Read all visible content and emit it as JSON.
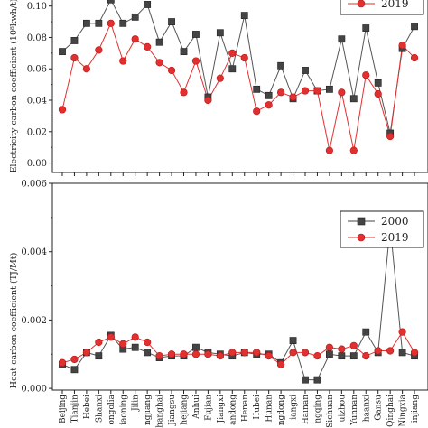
{
  "chart_data": [
    {
      "type": "line",
      "ylabel": "Electricity carbon coefficient (10⁸kwh/t)",
      "ylim": [
        -0.006,
        0.105
      ],
      "yticks": [
        "0.00",
        "0.02",
        "0.04",
        "0.06",
        "0.08",
        "0.10"
      ],
      "ytick_values": [
        0,
        0.02,
        0.04,
        0.06,
        0.08,
        0.1
      ],
      "categories": [
        "Beijing",
        "Tianjin",
        "Hebei",
        "Shanxi",
        "Inner Mongolia",
        "Liaoning",
        "Jilin",
        "Heilongjiang",
        "Shanghai",
        "Jiangsu",
        "Zhejiang",
        "Anhui",
        "Fujian",
        "Jiangxi",
        "Shandong",
        "Henan",
        "Hubei",
        "Hunan",
        "Guangdong",
        "Guangxi",
        "Hainan",
        "Chongqing",
        "Sichuan",
        "Guizhou",
        "Yunnan",
        "Shaanxi",
        "Gansu",
        "Qinghai",
        "Ningxia",
        "Xinjiang"
      ],
      "series": [
        {
          "name": "2000",
          "color": "#444444",
          "marker": "square",
          "values": [
            0.071,
            0.078,
            0.089,
            0.089,
            0.104,
            0.089,
            0.093,
            0.101,
            0.077,
            0.09,
            0.071,
            0.082,
            0.042,
            0.083,
            0.06,
            0.094,
            0.047,
            0.043,
            0.062,
            0.041,
            0.059,
            0.046,
            0.047,
            0.079,
            0.041,
            0.086,
            0.051,
            0.019,
            0.073,
            0.087
          ]
        },
        {
          "name": "2019",
          "color": "#e03030",
          "marker": "circle",
          "values": [
            0.034,
            0.067,
            0.06,
            0.072,
            0.089,
            0.065,
            0.079,
            0.074,
            0.064,
            0.059,
            0.045,
            0.065,
            0.04,
            0.054,
            0.07,
            0.067,
            0.033,
            0.037,
            0.045,
            0.042,
            0.046,
            0.046,
            0.008,
            0.045,
            0.008,
            0.056,
            0.044,
            0.017,
            0.075,
            0.067
          ]
        }
      ],
      "legend": {
        "placement": "top-right",
        "visible_entries": [
          "2019"
        ]
      }
    },
    {
      "type": "line",
      "ylabel": "Heat carbon coefficient (TJ/Mt)",
      "ylim": [
        -5e-05,
        0.006
      ],
      "yticks": [
        "0.000",
        "0.002",
        "0.004",
        "0.006"
      ],
      "ytick_values": [
        0,
        0.002,
        0.004,
        0.006
      ],
      "categories": [
        "Beijing",
        "Tianjin",
        "Hebei",
        "Shanxi",
        "Inner Mongolia",
        "Liaoning",
        "Jilin",
        "Heilongjiang",
        "Shanghai",
        "Jiangsu",
        "Zhejiang",
        "Anhui",
        "Fujian",
        "Jiangxi",
        "Shandong",
        "Henan",
        "Hubei",
        "Hunan",
        "Guangdong",
        "Guangxi",
        "Hainan",
        "Chongqing",
        "Sichuan",
        "Guizhou",
        "Yunnan",
        "Shaanxi",
        "Gansu",
        "Qinghai",
        "Ningxia",
        "Xinjiang"
      ],
      "category_labels_visible": [
        "Beijing",
        "Tianjin",
        "Hebei",
        "Shanxi",
        "ongolia",
        "iaoning",
        "Jilin",
        "ngjiang",
        "hanghai",
        "Jiangsu",
        "hejiang",
        "Anhui",
        "Fujian",
        "Jiangxi",
        "andong",
        "Henan",
        "Hubei",
        "Hunan",
        "ngdong",
        "iangxi",
        "Hainan",
        "ngqing",
        "Sichuan",
        "uizhou",
        "Yunnan",
        "haanxi",
        "Gansu",
        "Qinghai",
        "Ningxia",
        "injiang"
      ],
      "series": [
        {
          "name": "2000",
          "color": "#444444",
          "marker": "square",
          "values": [
            0.0007,
            0.00055,
            0.00105,
            0.00095,
            0.00155,
            0.00115,
            0.0012,
            0.00105,
            0.0009,
            0.00095,
            0.00095,
            0.0012,
            0.00105,
            0.001,
            0.00095,
            0.00105,
            0.001,
            0.001,
            0.00075,
            0.0014,
            0.00025,
            0.00025,
            0.001,
            0.00095,
            0.00095,
            0.00165,
            0.00105,
            0.00475,
            0.00105,
            0.00095
          ]
        },
        {
          "name": "2019",
          "color": "#e03030",
          "marker": "circle",
          "values": [
            0.00075,
            0.00085,
            0.00105,
            0.00135,
            0.0015,
            0.0013,
            0.0015,
            0.00135,
            0.00095,
            0.001,
            0.001,
            0.001,
            0.001,
            0.00095,
            0.00105,
            0.00105,
            0.00105,
            0.00095,
            0.0007,
            0.00105,
            0.00105,
            0.00095,
            0.0012,
            0.00115,
            0.00125,
            0.00095,
            0.0011,
            0.0011,
            0.00165,
            0.00105
          ]
        }
      ],
      "legend": {
        "placement": "top-right",
        "visible_entries": [
          "2000",
          "2019"
        ]
      }
    }
  ]
}
